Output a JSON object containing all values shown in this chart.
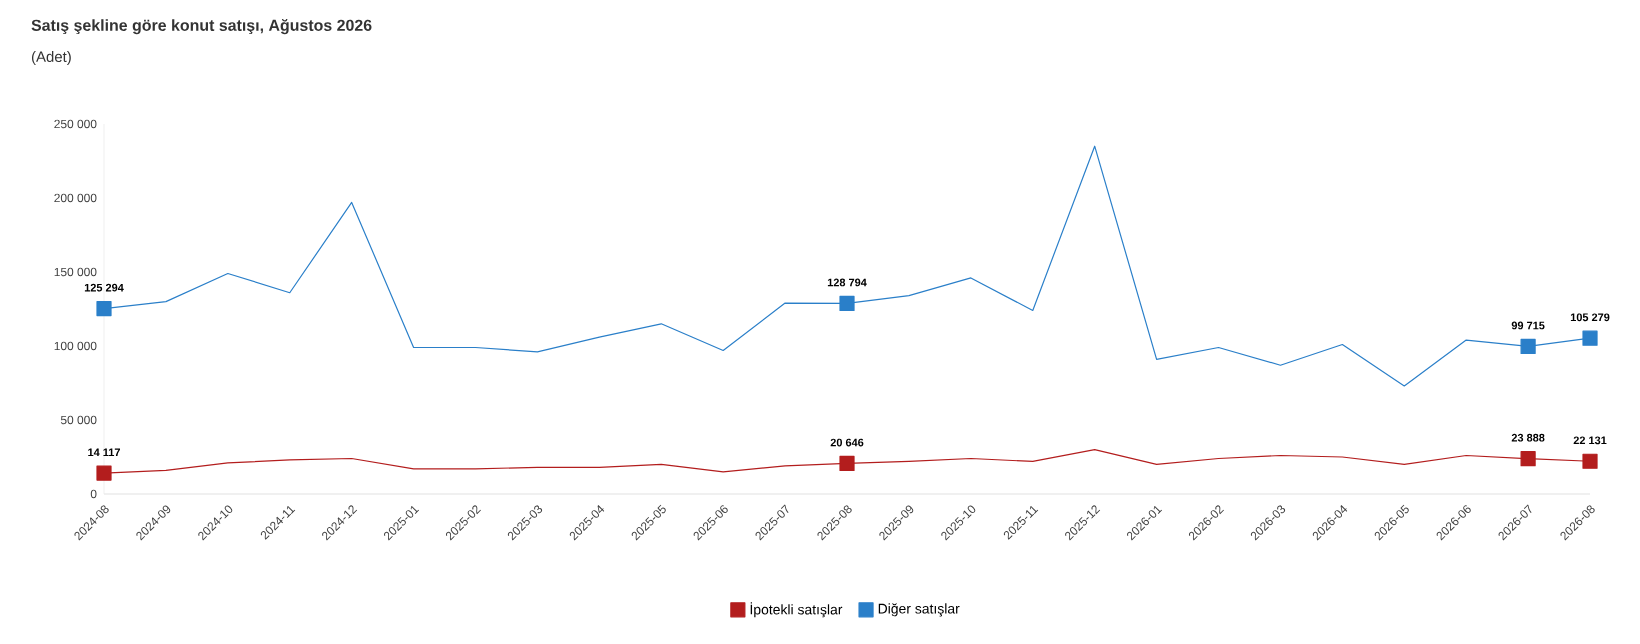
{
  "chart_data": {
    "type": "line",
    "title": "Satış şekline göre konut satışı, Ağustos 2026",
    "subtitle": "(Adet)",
    "categories": [
      "2024-08",
      "2024-09",
      "2024-10",
      "2024-11",
      "2024-12",
      "2025-01",
      "2025-02",
      "2025-03",
      "2025-04",
      "2025-05",
      "2025-06",
      "2025-07",
      "2025-08",
      "2025-09",
      "2025-10",
      "2025-11",
      "2025-12",
      "2026-01",
      "2026-02",
      "2026-03",
      "2026-04",
      "2026-05",
      "2026-06",
      "2026-07",
      "2026-08"
    ],
    "ylim": [
      0,
      250000
    ],
    "yticks": [
      0,
      {
        "value": 50000,
        "label": "50 000"
      },
      {
        "value": 100000,
        "label": "100 000"
      },
      {
        "value": 150000,
        "label": "150 000"
      },
      {
        "value": 200000,
        "label": "200 000"
      },
      {
        "value": 250000,
        "label": "250 000"
      }
    ],
    "grid": false,
    "legend": "bottom",
    "line_style": "solid",
    "series": [
      {
        "name": "İpotekli satışlar",
        "color": "#b31d1d",
        "values": [
          14117,
          16000,
          21000,
          23000,
          24000,
          17000,
          17000,
          18000,
          18000,
          20000,
          15000,
          19000,
          20646,
          22000,
          24000,
          22000,
          30000,
          20000,
          24000,
          26000,
          25000,
          20000,
          26000,
          23888,
          22131
        ],
        "value_labels": [
          "14 117",
          null,
          null,
          null,
          null,
          null,
          null,
          null,
          null,
          null,
          null,
          null,
          "20 646",
          null,
          null,
          null,
          null,
          null,
          null,
          null,
          null,
          null,
          null,
          "23 888",
          "22 131"
        ]
      },
      {
        "name": "Diğer satışlar",
        "color": "#2a7fc9",
        "values": [
          125294,
          130000,
          149000,
          136000,
          197000,
          99000,
          99000,
          96000,
          106000,
          115000,
          97000,
          129000,
          128794,
          134000,
          146000,
          124000,
          235000,
          91000,
          99000,
          87000,
          101000,
          73000,
          104000,
          99715,
          105279
        ],
        "value_labels": [
          "125 294",
          null,
          null,
          null,
          null,
          null,
          null,
          null,
          null,
          null,
          null,
          null,
          "128 794",
          null,
          null,
          null,
          null,
          null,
          null,
          null,
          null,
          null,
          null,
          "99 715",
          "105 279"
        ]
      }
    ]
  }
}
